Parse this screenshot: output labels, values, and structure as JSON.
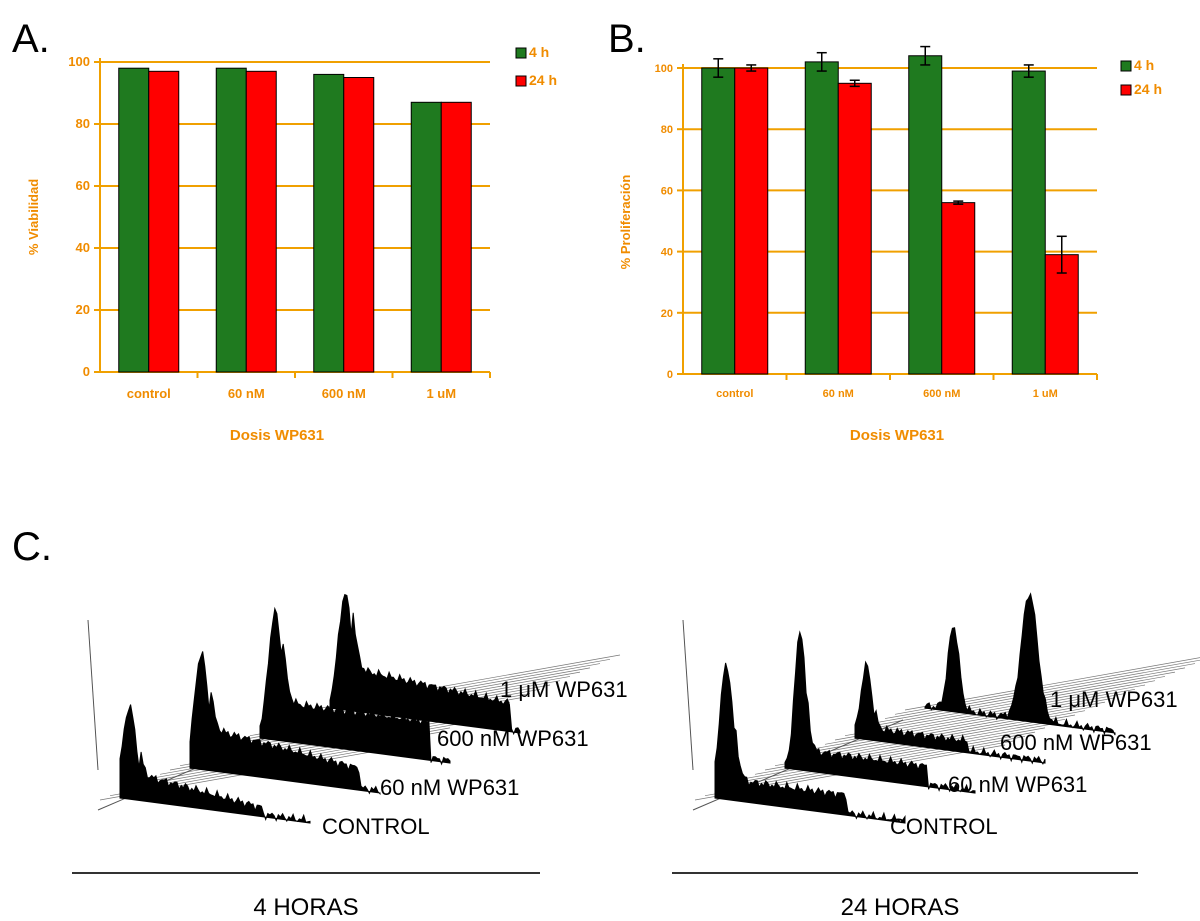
{
  "panel_labels": {
    "a": "A.",
    "b": "B.",
    "c": "C."
  },
  "colors": {
    "series_4h": "#1f7a1f",
    "series_24h": "#ff0000",
    "axis": "#f0a000",
    "grid": "#f0a000",
    "text_orange": "#f08c00",
    "histogram": "#000000"
  },
  "chart_data": [
    {
      "panel": "A.",
      "type": "bar",
      "categories": [
        "control",
        "60 nM",
        "600 nM",
        "1 uM"
      ],
      "series": [
        {
          "name": "4 h",
          "values": [
            98,
            98,
            96,
            87
          ]
        },
        {
          "name": "24 h",
          "values": [
            97,
            97,
            95,
            87
          ]
        }
      ],
      "ylim": [
        0,
        100
      ],
      "yticks": [
        "0",
        "20",
        "40",
        "60",
        "80",
        "100"
      ],
      "xlabel": "Dosis WP631",
      "ylabel": "% Viabilidad",
      "grid": true,
      "legend": "top-right"
    },
    {
      "panel": "B.",
      "type": "bar",
      "categories": [
        "control",
        "60 nM",
        "600 nM",
        "1 uM"
      ],
      "series": [
        {
          "name": "4 h",
          "values": [
            100,
            102,
            104,
            99
          ],
          "errors": [
            3,
            3,
            3,
            2
          ]
        },
        {
          "name": "24 h",
          "values": [
            100,
            95,
            56,
            39
          ],
          "errors": [
            1,
            1,
            0.5,
            6
          ]
        }
      ],
      "ylim": [
        0,
        100
      ],
      "yticks": [
        "0",
        "20",
        "40",
        "60",
        "80",
        "100"
      ],
      "xlabel": "Dosis WP631",
      "ylabel": "% Proliferación",
      "grid": true,
      "legend": "top-right"
    }
  ],
  "histograms": {
    "left": {
      "title": "4 HORAS",
      "labels": [
        "CONTROL",
        "60 nM WP631",
        "600 nM WP631",
        "1 μM WP631"
      ]
    },
    "right": {
      "title": "24 HORAS",
      "labels": [
        "CONTROL",
        "60 nM WP631",
        "600 nM WP631",
        "1 μM WP631"
      ]
    }
  }
}
